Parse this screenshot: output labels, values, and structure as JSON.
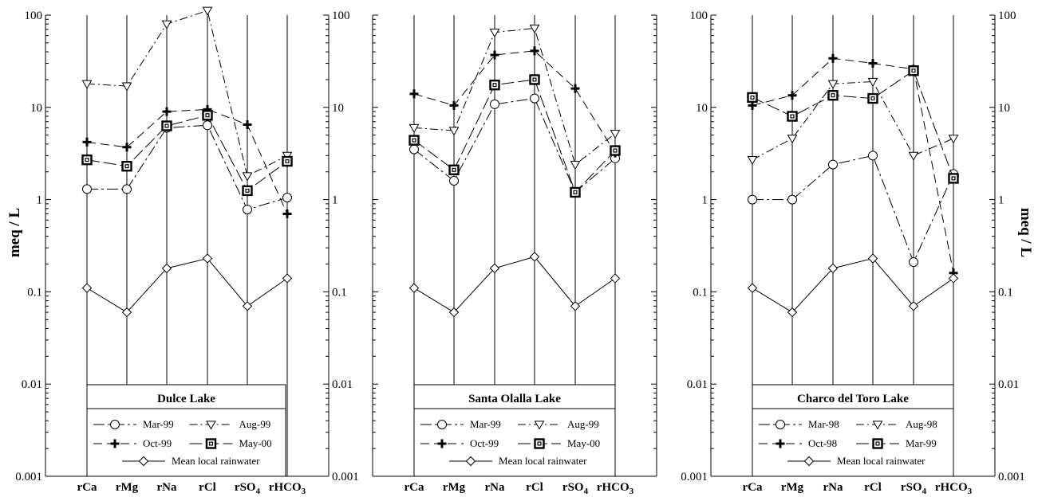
{
  "chart_data": [
    {
      "type": "line",
      "title": "Dulce Lake",
      "y_scale": "log",
      "ylim": [
        0.001,
        100
      ],
      "ylabel_left": "meq / L",
      "ylabel_right": "",
      "categories": [
        "rCa",
        "rMg",
        "rNa",
        "rCl",
        "rSO4",
        "rHCO3"
      ],
      "series": [
        {
          "name": "Mar-99",
          "marker": "circle",
          "dash": "long-dash-dot",
          "values": [
            1.3,
            1.3,
            6.0,
            6.4,
            0.78,
            1.05
          ]
        },
        {
          "name": "Aug-99",
          "marker": "triangle-down",
          "dash": "dash-dot",
          "values": [
            18,
            17,
            80,
            112,
            1.8,
            3.0
          ]
        },
        {
          "name": "Oct-99",
          "marker": "plus",
          "dash": "dash",
          "values": [
            4.2,
            3.7,
            9.0,
            9.5,
            6.5,
            0.7
          ]
        },
        {
          "name": "May-00",
          "marker": "square",
          "dash": "long-dash",
          "values": [
            2.7,
            2.3,
            6.3,
            8.2,
            1.25,
            2.6
          ]
        },
        {
          "name": "Mean local rainwater",
          "marker": "diamond",
          "dash": "solid",
          "values": [
            0.11,
            0.06,
            0.18,
            0.23,
            0.07,
            0.14
          ]
        }
      ]
    },
    {
      "type": "line",
      "title": "Santa Olalla Lake",
      "y_scale": "log",
      "ylim": [
        0.001,
        100
      ],
      "categories": [
        "rCa",
        "rMg",
        "rNa",
        "rCl",
        "rSO4",
        "rHCO3"
      ],
      "series": [
        {
          "name": "Mar-99",
          "marker": "circle",
          "dash": "long-dash-dot",
          "values": [
            3.5,
            1.6,
            10.8,
            12.5,
            1.2,
            2.8
          ]
        },
        {
          "name": "Aug-99",
          "marker": "triangle-down",
          "dash": "dash-dot",
          "values": [
            6.0,
            5.6,
            65,
            72,
            2.4,
            5.2
          ]
        },
        {
          "name": "Oct-99",
          "marker": "plus",
          "dash": "dash",
          "values": [
            14,
            10.5,
            37,
            41,
            16,
            3.2
          ]
        },
        {
          "name": "May-00",
          "marker": "square",
          "dash": "long-dash",
          "values": [
            4.4,
            2.1,
            17.5,
            20,
            1.2,
            3.4
          ]
        },
        {
          "name": "Mean local rainwater",
          "marker": "diamond",
          "dash": "solid",
          "values": [
            0.11,
            0.06,
            0.18,
            0.24,
            0.07,
            0.14
          ]
        }
      ]
    },
    {
      "type": "line",
      "title": "Charco del Toro Lake",
      "y_scale": "log",
      "ylim": [
        0.001,
        100
      ],
      "ylabel_right": "meq / L",
      "categories": [
        "rCa",
        "rMg",
        "rNa",
        "rCl",
        "rSO4",
        "rHCO3"
      ],
      "series": [
        {
          "name": "Mar-98",
          "marker": "circle",
          "dash": "long-dash-dot",
          "values": [
            1.0,
            1.0,
            2.4,
            3.0,
            0.21,
            1.9
          ]
        },
        {
          "name": "Aug-98",
          "marker": "triangle-down",
          "dash": "dash-dot",
          "values": [
            2.7,
            4.6,
            18,
            19,
            3.0,
            4.6
          ]
        },
        {
          "name": "Oct-98",
          "marker": "plus",
          "dash": "dash",
          "values": [
            10.5,
            13.5,
            34,
            30,
            26,
            0.16
          ]
        },
        {
          "name": "Mar-99",
          "marker": "square",
          "dash": "long-dash",
          "values": [
            12.8,
            8.0,
            13.5,
            12.5,
            25,
            1.7
          ]
        },
        {
          "name": "Mean local rainwater",
          "marker": "diamond",
          "dash": "solid",
          "values": [
            0.11,
            0.06,
            0.18,
            0.23,
            0.07,
            0.14
          ]
        }
      ]
    }
  ],
  "ui": {
    "left_axis_title": "meq / L",
    "right_axis_title": "meq / L",
    "tick_labels": [
      "0.001",
      "0.01",
      "0.1",
      "1",
      "10",
      "100"
    ]
  }
}
